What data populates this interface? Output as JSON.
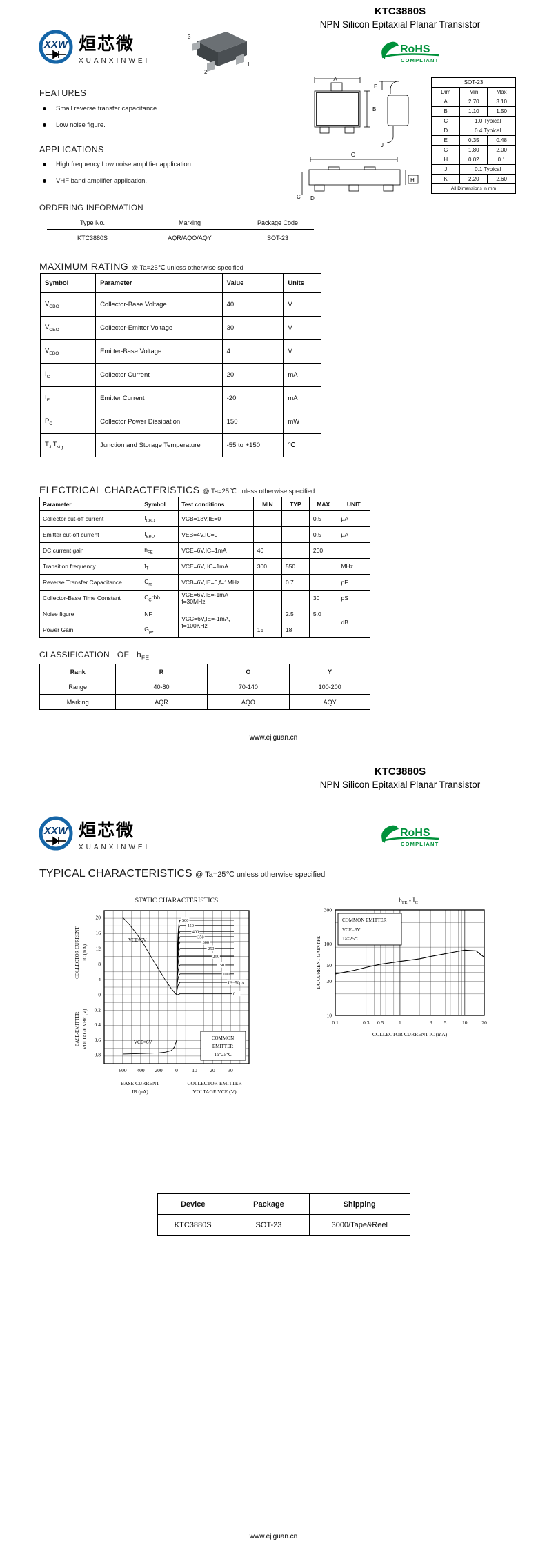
{
  "header": {
    "title": "KTC3880S",
    "subtitle": "NPN Silicon Epitaxial Planar Transistor"
  },
  "brand": {
    "logo_symbol": "XXW",
    "logo_cn": "烜芯微",
    "logo_en": "XUANXINWEI",
    "rohs_title": "RoHS",
    "rohs_subtitle": "COMPLIANT",
    "rohs_color": "#00913a",
    "logo_blue": "#1565a7"
  },
  "footer": {
    "url": "www.ejiguan.cn"
  },
  "page1": {
    "features": {
      "heading": "FEATURES",
      "items": [
        "Small reverse transfer capacitance.",
        "Low noise figure."
      ]
    },
    "applications": {
      "heading": "APPLICATIONS",
      "items": [
        "High frequency Low noise amplifier application.",
        "VHF band amplifier application."
      ]
    },
    "drawing_labels": {
      "a": "A",
      "b": "B",
      "c": "C",
      "d": "D",
      "e": "E",
      "g": "G",
      "h": "H",
      "j": "J",
      "pin1": "1",
      "pin2": "2",
      "pin3": "3"
    },
    "dim_table": {
      "caption": "SOT-23",
      "headers": [
        "Dim",
        "Min",
        "Max"
      ],
      "rows": [
        {
          "dim": "A",
          "min": "2.70",
          "max": "3.10"
        },
        {
          "dim": "B",
          "min": "1.10",
          "max": "1.50"
        },
        {
          "dim": "C",
          "span": "1.0 Typical"
        },
        {
          "dim": "D",
          "span": "0.4 Typical"
        },
        {
          "dim": "E",
          "min": "0.35",
          "max": "0.48"
        },
        {
          "dim": "G",
          "min": "1.80",
          "max": "2.00"
        },
        {
          "dim": "H",
          "min": "0.02",
          "max": "0.1"
        },
        {
          "dim": "J",
          "span": "0.1 Typical"
        },
        {
          "dim": "K",
          "min": "2.20",
          "max": "2.60"
        }
      ],
      "footer": "All Dimensions in mm"
    },
    "ordering": {
      "heading": "ORDERING INFORMATION",
      "headers": [
        "Type No.",
        "Marking",
        "Package Code"
      ],
      "row": [
        "KTC3880S",
        "AQR/AQO/AQY",
        "SOT-23"
      ]
    },
    "max_rating": {
      "heading": "MAXIMUM RATING",
      "condition": "@ Ta=25℃ unless otherwise specified",
      "headers": [
        "Symbol",
        "Parameter",
        "Value",
        "Units"
      ],
      "rows": [
        {
          "sym": "V",
          "sub": "CBO",
          "param": "Collector-Base Voltage",
          "value": "40",
          "unit": "V"
        },
        {
          "sym": "V",
          "sub": "CEO",
          "param": "Collector-Emitter Voltage",
          "value": "30",
          "unit": "V"
        },
        {
          "sym": "V",
          "sub": "EBO",
          "param": "Emitter-Base Voltage",
          "value": "4",
          "unit": "V"
        },
        {
          "sym": "I",
          "sub": "C",
          "param": "Collector Current",
          "value": "20",
          "unit": "mA"
        },
        {
          "sym": "I",
          "sub": "E",
          "param": "Emitter Current",
          "value": "-20",
          "unit": "mA"
        },
        {
          "sym": "P",
          "sub": "C",
          "param": "Collector Power Dissipation",
          "value": "150",
          "unit": "mW"
        },
        {
          "sym": "T",
          "sub": "J",
          "sym2": ",T",
          "sub2": "stg",
          "param": "Junction and Storage Temperature",
          "value": "-55 to +150",
          "unit": "℃"
        }
      ]
    },
    "electrical": {
      "heading": "ELECTRICAL CHARACTERISTICS",
      "condition": "@ Ta=25℃ unless otherwise specified",
      "headers": [
        "Parameter",
        "Symbol",
        "Test conditions",
        "MIN",
        "TYP",
        "MAX",
        "UNIT"
      ],
      "rows": [
        {
          "param": "Collector cut-off current",
          "sym": "I",
          "sub": "CBO",
          "cond": "VCB=18V,IE=0",
          "min": "",
          "typ": "",
          "max": "0.5",
          "unit": "μA"
        },
        {
          "param": "Emitter cut-off current",
          "sym": "I",
          "sub": "EBO",
          "cond": "VEB=4V,IC=0",
          "min": "",
          "typ": "",
          "max": "0.5",
          "unit": "μA"
        },
        {
          "param": "DC current gain",
          "sym": "h",
          "sub": "FE",
          "cond": "VCE=6V,IC=1mA",
          "min": "40",
          "typ": "",
          "max": "200",
          "unit": ""
        },
        {
          "param": "Transition frequency",
          "sym": "f",
          "sub": "T",
          "cond": "VCE=6V, IC=1mA",
          "min": "300",
          "typ": "550",
          "max": "",
          "unit": "MHz"
        },
        {
          "param": "Reverse Transfer Capacitance",
          "sym": "C",
          "sub": "re",
          "cond": "VCB=6V,IE=0,f=1MHz",
          "min": "",
          "typ": "0.7",
          "max": "",
          "unit": "pF"
        },
        {
          "param": "Collector-Base Time Constant",
          "sym": "C",
          "sub": "C",
          "sym2": "rbb",
          "cond": "VCE=6V,IE=-1mA",
          "cond2": "f=30MHz",
          "min": "",
          "typ": "",
          "max": "30",
          "unit": "pS"
        },
        {
          "param": "Noise figure",
          "sym": "NF",
          "cond": "VCC=6V,IE=-1mA,",
          "cond2": "f=100KHz",
          "min": "",
          "typ": "2.5",
          "max": "5.0",
          "unit": "dB"
        },
        {
          "param": "Power Gain",
          "sym": "G",
          "sub": "pe",
          "min": "15",
          "typ": "18",
          "max": ""
        }
      ]
    },
    "classification": {
      "heading": "CLASSIFICATION   OF   h",
      "heading_sub": "FE",
      "headers": [
        "Rank",
        "R",
        "O",
        "Y"
      ],
      "rows": [
        [
          "Range",
          "40-80",
          "70-140",
          "100-200"
        ],
        [
          "Marking",
          "AQR",
          "AQO",
          "AQY"
        ]
      ]
    }
  },
  "page2": {
    "section_heading": "TYPICAL CHARACTERISTICS",
    "section_condition": "@ Ta=25℃ unless otherwise specified",
    "charts": {
      "left": {
        "annotations": {
          "vce_top": "VCE=6V",
          "vce_bottom": "VCE=6V",
          "box1": "COMMON",
          "box2": "EMITTER",
          "box3": "Ta=25℃"
        },
        "captions": {
          "y_top1": "COLLECTOR CURRENT",
          "y_top2": "IC  (mA)",
          "y_bot1": "BASE-EMITTER",
          "y_bot2": "VOLTAGE VBE (V)",
          "x_left1": "BASE CURRENT",
          "x_left2": "IB  (μA)",
          "x_right1": "COLLECTOR-EMITTER",
          "x_right2": "VOLTAGE VCE (V)"
        }
      },
      "right": {
        "title_parts": {
          "t1": "h",
          "t2": "FE",
          "t3": "  -  I",
          "t4": "C"
        },
        "box1": "COMMON EMITTER",
        "box2": "VCE=6V",
        "box3": "Ta=25℃",
        "xlabel": "COLLECTOR CURRENT IC  (mA)",
        "ylabel": "DC CURRENT GAIN hFE"
      }
    },
    "device_table": {
      "headers": [
        "Device",
        "Package",
        "Shipping"
      ],
      "row": [
        "KTC3880S",
        "SOT-23",
        "3000/Tape&Reel"
      ]
    }
  },
  "chart_data": [
    {
      "type": "line",
      "title": "STATIC CHARACTERISTICS",
      "x_left_axis": {
        "label": "BASE CURRENT IB (μA)",
        "ticks": [
          600,
          400,
          200
        ]
      },
      "x_right_axis": {
        "label": "COLLECTOR-EMITTER VOLTAGE VCE (V)",
        "ticks": [
          0,
          10,
          20,
          30
        ]
      },
      "y_top_axis": {
        "label": "COLLECTOR CURRENT IC (mA)",
        "ticks": [
          20,
          16,
          12,
          8,
          4,
          0
        ]
      },
      "y_bottom_axis": {
        "label": "BASE-EMITTER VOLTAGE VBE (V)",
        "ticks": [
          0.2,
          0.4,
          0.6,
          0.8
        ]
      },
      "legend_box": [
        "COMMON",
        "EMITTER",
        "Ta=25℃"
      ],
      "annotations": [
        "VCE=6V",
        "VCE=6V"
      ],
      "grid": true,
      "ib_family_labels": [
        "500",
        "450",
        "400",
        "350",
        "300",
        "250",
        "200",
        "150",
        "100",
        "IB=50μA",
        "0"
      ],
      "ib_family_ic_levels": [
        19.3,
        17.9,
        16.4,
        15.0,
        13.6,
        12.0,
        10.0,
        7.7,
        5.4,
        3.2,
        0.3
      ],
      "transfer_curve_ib_vs_ic": [
        [
          600,
          20
        ],
        [
          520,
          18
        ],
        [
          440,
          15.6
        ],
        [
          360,
          12.8
        ],
        [
          280,
          9.6
        ],
        [
          200,
          6.6
        ],
        [
          120,
          3.6
        ],
        [
          60,
          1.6
        ],
        [
          20,
          0.5
        ],
        [
          0,
          0
        ]
      ],
      "vbe_curve_ib_vs_vbe": [
        [
          600,
          0.79
        ],
        [
          450,
          0.785
        ],
        [
          300,
          0.78
        ],
        [
          200,
          0.775
        ],
        [
          120,
          0.765
        ],
        [
          60,
          0.745
        ],
        [
          25,
          0.7
        ],
        [
          5,
          0.63
        ],
        [
          0,
          0.6
        ]
      ]
    },
    {
      "type": "line",
      "title": "hFE - IC",
      "xlabel": "COLLECTOR CURRENT IC (mA)",
      "ylabel": "DC CURRENT GAIN hFE",
      "x_scale": "log",
      "y_scale": "log",
      "xlim": [
        0.1,
        20
      ],
      "ylim": [
        10,
        300
      ],
      "x_ticks": [
        0.1,
        0.3,
        0.5,
        1,
        3,
        5,
        10,
        20
      ],
      "y_ticks": [
        300,
        100,
        50,
        30,
        10
      ],
      "grid": true,
      "legend_box": [
        "COMMON EMITTER",
        "VCE=6V",
        "Ta=25℃"
      ],
      "series": [
        {
          "name": "hFE",
          "points": [
            [
              0.1,
              38
            ],
            [
              0.2,
              43
            ],
            [
              0.3,
              47
            ],
            [
              0.5,
              52
            ],
            [
              1,
              57
            ],
            [
              2,
              62
            ],
            [
              3,
              67
            ],
            [
              5,
              73
            ],
            [
              8,
              79
            ],
            [
              10,
              82
            ],
            [
              15,
              80
            ],
            [
              20,
              65
            ]
          ]
        }
      ]
    }
  ]
}
